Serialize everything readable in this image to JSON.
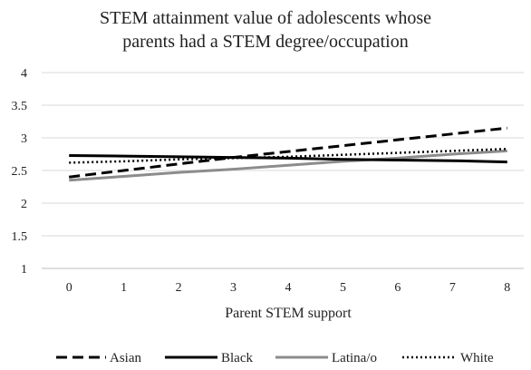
{
  "chart_data": {
    "type": "line",
    "title_lines": [
      "STEM attainment value of adolescents whose",
      "parents had a STEM degree/occupation"
    ],
    "xlabel": "Parent STEM support",
    "ylabel": "",
    "x": [
      0,
      1,
      2,
      3,
      4,
      5,
      6,
      7,
      8
    ],
    "xlim": [
      0,
      8
    ],
    "ylim": [
      1,
      4
    ],
    "yticks": [
      1,
      1.5,
      2,
      2.5,
      3,
      3.5,
      4
    ],
    "grid": "horizontal",
    "legend_position": "bottom",
    "series": [
      {
        "name": "Asian",
        "style": "dashed",
        "color": "#000000",
        "values": [
          2.4,
          2.5,
          2.6,
          2.7,
          2.79,
          2.88,
          2.97,
          3.06,
          3.15
        ]
      },
      {
        "name": "Black",
        "style": "solid",
        "color": "#000000",
        "values": [
          2.73,
          2.72,
          2.71,
          2.7,
          2.69,
          2.67,
          2.66,
          2.65,
          2.63
        ]
      },
      {
        "name": "Latina/o",
        "style": "solid",
        "color": "#8c8c8c",
        "values": [
          2.35,
          2.41,
          2.47,
          2.52,
          2.58,
          2.64,
          2.69,
          2.75,
          2.8
        ]
      },
      {
        "name": "White",
        "style": "dotted",
        "color": "#000000",
        "values": [
          2.62,
          2.64,
          2.67,
          2.69,
          2.71,
          2.74,
          2.77,
          2.8,
          2.83
        ]
      }
    ]
  }
}
